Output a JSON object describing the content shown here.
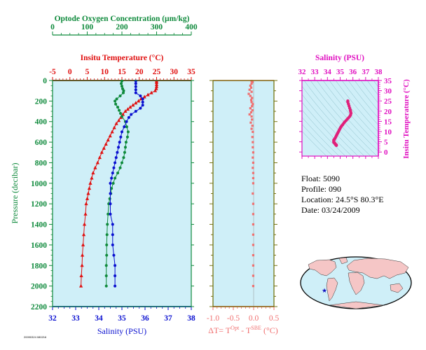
{
  "colors": {
    "green": "#0f8a3c",
    "red": "#e01010",
    "blue": "#0a10d0",
    "salmon": "#f07070",
    "magenta": "#e010c0",
    "panel_bg": "#cfeff8",
    "axis_dark": "#6a6a00"
  },
  "float_info": {
    "float": "Float:  5090",
    "profile": "Profile:  090",
    "location": "Location:  24.5°S  80.3°E",
    "date": "Date:  03/24/2009"
  },
  "footer_code": "20090324 080216",
  "chart_data": [
    {
      "type": "line",
      "panel": "profile",
      "title_oxygen": "Optode Oxygen Concentration (µm/kg)",
      "title_temperature": "Insitu Temperature (°C)",
      "xlabel_salinity": "Salinity (PSU)",
      "ylabel": "Pressure (decibar)",
      "ylim": [
        0,
        2200
      ],
      "y_ticks": [
        "0",
        "200",
        "400",
        "600",
        "800",
        "1000",
        "1200",
        "1400",
        "1600",
        "1800",
        "2000",
        "2200"
      ],
      "oxygen_axis": {
        "range": [
          0,
          400
        ],
        "ticks": [
          "0",
          "100",
          "200",
          "300",
          "400"
        ]
      },
      "temperature_axis": {
        "range": [
          -5,
          35
        ],
        "ticks": [
          "-5",
          "0",
          "5",
          "10",
          "15",
          "20",
          "25",
          "30",
          "35"
        ]
      },
      "salinity_axis": {
        "range": [
          32,
          38
        ],
        "ticks": [
          "32",
          "33",
          "34",
          "35",
          "36",
          "37",
          "38"
        ]
      },
      "series": [
        {
          "variable": "temperature",
          "marker": "triangle",
          "color": "#e01010",
          "points": [
            [
              25.0,
              5
            ],
            [
              25.0,
              20
            ],
            [
              25.0,
              40
            ],
            [
              25.0,
              60
            ],
            [
              24.9,
              80
            ],
            [
              24.6,
              100
            ],
            [
              23.5,
              120
            ],
            [
              22.5,
              140
            ],
            [
              21.5,
              160
            ],
            [
              20.5,
              180
            ],
            [
              19.8,
              200
            ],
            [
              19.0,
              220
            ],
            [
              18.2,
              240
            ],
            [
              17.4,
              260
            ],
            [
              16.7,
              280
            ],
            [
              16.0,
              300
            ],
            [
              15.3,
              330
            ],
            [
              14.7,
              360
            ],
            [
              14.1,
              390
            ],
            [
              13.4,
              420
            ],
            [
              12.8,
              460
            ],
            [
              12.2,
              500
            ],
            [
              11.6,
              540
            ],
            [
              11.0,
              580
            ],
            [
              10.4,
              620
            ],
            [
              9.8,
              660
            ],
            [
              9.2,
              700
            ],
            [
              8.6,
              750
            ],
            [
              8.0,
              800
            ],
            [
              7.3,
              850
            ],
            [
              6.7,
              900
            ],
            [
              6.3,
              950
            ],
            [
              5.9,
              1000
            ],
            [
              5.6,
              1050
            ],
            [
              5.3,
              1100
            ],
            [
              5.0,
              1150
            ],
            [
              4.7,
              1200
            ],
            [
              4.5,
              1300
            ],
            [
              4.2,
              1400
            ],
            [
              4.0,
              1500
            ],
            [
              3.8,
              1600
            ],
            [
              3.6,
              1700
            ],
            [
              3.5,
              1800
            ],
            [
              3.3,
              1900
            ],
            [
              3.2,
              2000
            ]
          ]
        },
        {
          "variable": "oxygen",
          "marker": "circle",
          "color": "#0f8a3c",
          "points": [
            [
              200,
              5
            ],
            [
              198,
              30
            ],
            [
              200,
              55
            ],
            [
              202,
              80
            ],
            [
              205,
              100
            ],
            [
              204,
              120
            ],
            [
              195,
              150
            ],
            [
              185,
              180
            ],
            [
              180,
              200
            ],
            [
              182,
              230
            ],
            [
              188,
              260
            ],
            [
              192,
              290
            ],
            [
              196,
              320
            ],
            [
              200,
              350
            ],
            [
              210,
              400
            ],
            [
              214,
              450
            ],
            [
              218,
              500
            ],
            [
              216,
              550
            ],
            [
              212,
              600
            ],
            [
              210,
              650
            ],
            [
              208,
              700
            ],
            [
              205,
              750
            ],
            [
              200,
              800
            ],
            [
              195,
              850
            ],
            [
              188,
              900
            ],
            [
              180,
              950
            ],
            [
              175,
              1000
            ],
            [
              170,
              1050
            ],
            [
              168,
              1100
            ],
            [
              165,
              1150
            ],
            [
              162,
              1200
            ],
            [
              160,
              1300
            ],
            [
              158,
              1400
            ],
            [
              157,
              1500
            ],
            [
              156,
              1600
            ],
            [
              156,
              1700
            ],
            [
              155,
              1800
            ],
            [
              155,
              1900
            ],
            [
              155,
              2000
            ]
          ]
        },
        {
          "variable": "salinity",
          "marker": "circle",
          "color": "#0a10d0",
          "points": [
            [
              35.6,
              5
            ],
            [
              35.6,
              30
            ],
            [
              35.6,
              60
            ],
            [
              35.6,
              90
            ],
            [
              35.6,
              120
            ],
            [
              35.8,
              150
            ],
            [
              35.9,
              180
            ],
            [
              35.9,
              210
            ],
            [
              35.9,
              240
            ],
            [
              35.8,
              270
            ],
            [
              35.6,
              300
            ],
            [
              35.4,
              330
            ],
            [
              35.3,
              360
            ],
            [
              35.2,
              400
            ],
            [
              35.1,
              450
            ],
            [
              35.0,
              500
            ],
            [
              34.95,
              550
            ],
            [
              34.9,
              600
            ],
            [
              34.85,
              650
            ],
            [
              34.8,
              700
            ],
            [
              34.75,
              750
            ],
            [
              34.7,
              800
            ],
            [
              34.65,
              850
            ],
            [
              34.6,
              900
            ],
            [
              34.55,
              950
            ],
            [
              34.5,
              1000
            ],
            [
              34.5,
              1100
            ],
            [
              34.5,
              1200
            ],
            [
              34.5,
              1300
            ],
            [
              34.6,
              1400
            ],
            [
              34.6,
              1500
            ],
            [
              34.6,
              1600
            ],
            [
              34.65,
              1700
            ],
            [
              34.7,
              1800
            ],
            [
              34.7,
              1900
            ],
            [
              34.7,
              2000
            ]
          ]
        }
      ]
    },
    {
      "type": "scatter",
      "panel": "temperature-difference",
      "xlabel": "ΔT= T",
      "xlabel_sup1": "Opt",
      "xlabel_mid": " - T",
      "xlabel_sup2": "SBE",
      "xlabel_end": " (°C)",
      "xlim": [
        -1.0,
        0.5
      ],
      "x_ticks": [
        "-1.0",
        "-0.5",
        "0.0",
        "0.5"
      ],
      "ylim": [
        0,
        2200
      ],
      "color": "#f07070",
      "points": [
        [
          -0.05,
          5
        ],
        [
          -0.03,
          15
        ],
        [
          -0.05,
          30
        ],
        [
          -0.08,
          50
        ],
        [
          -0.06,
          70
        ],
        [
          -0.1,
          90
        ],
        [
          -0.05,
          110
        ],
        [
          -0.12,
          130
        ],
        [
          -0.08,
          150
        ],
        [
          -0.04,
          170
        ],
        [
          -0.06,
          190
        ],
        [
          -0.05,
          210
        ],
        [
          -0.02,
          230
        ],
        [
          -0.04,
          250
        ],
        [
          -0.08,
          270
        ],
        [
          -0.03,
          290
        ],
        [
          -0.06,
          310
        ],
        [
          -0.1,
          330
        ],
        [
          -0.05,
          350
        ],
        [
          -0.04,
          380
        ],
        [
          -0.07,
          410
        ],
        [
          -0.03,
          440
        ],
        [
          -0.05,
          470
        ],
        [
          -0.02,
          500
        ],
        [
          -0.03,
          550
        ],
        [
          -0.02,
          600
        ],
        [
          -0.02,
          650
        ],
        [
          -0.01,
          700
        ],
        [
          -0.02,
          750
        ],
        [
          -0.01,
          800
        ],
        [
          -0.02,
          850
        ],
        [
          -0.01,
          900
        ],
        [
          -0.01,
          950
        ],
        [
          -0.01,
          1000
        ],
        [
          -0.02,
          1100
        ],
        [
          -0.01,
          1200
        ],
        [
          -0.01,
          1300
        ],
        [
          -0.01,
          1400
        ],
        [
          -0.01,
          1500
        ],
        [
          -0.01,
          1600
        ],
        [
          -0.01,
          1700
        ],
        [
          -0.01,
          1800
        ],
        [
          -0.01,
          1900
        ],
        [
          -0.01,
          2000
        ]
      ]
    },
    {
      "type": "scatter",
      "panel": "theta-s",
      "xlabel": "Salinity (PSU)",
      "ylabel": "Insitu Temperature (°C)",
      "xlim": [
        32,
        38
      ],
      "x_ticks": [
        "32",
        "33",
        "34",
        "35",
        "36",
        "37",
        "38"
      ],
      "ylim": [
        -2,
        35
      ],
      "y_ticks": [
        "0",
        "5",
        "10",
        "15",
        "20",
        "25",
        "30",
        "35"
      ],
      "color": "#e0207a",
      "points": [
        [
          35.6,
          25.0
        ],
        [
          35.6,
          24.5
        ],
        [
          35.65,
          23.5
        ],
        [
          35.7,
          22.5
        ],
        [
          35.75,
          21.5
        ],
        [
          35.8,
          20.5
        ],
        [
          35.82,
          19.8
        ],
        [
          35.85,
          19.0
        ],
        [
          35.82,
          18.2
        ],
        [
          35.75,
          17.4
        ],
        [
          35.65,
          16.7
        ],
        [
          35.55,
          16.0
        ],
        [
          35.45,
          15.3
        ],
        [
          35.35,
          14.7
        ],
        [
          35.28,
          14.1
        ],
        [
          35.2,
          13.4
        ],
        [
          35.12,
          12.8
        ],
        [
          35.05,
          12.2
        ],
        [
          35.0,
          11.6
        ],
        [
          34.95,
          11.0
        ],
        [
          34.9,
          10.4
        ],
        [
          34.85,
          9.8
        ],
        [
          34.8,
          9.2
        ],
        [
          34.75,
          8.6
        ],
        [
          34.7,
          8.0
        ],
        [
          34.65,
          7.3
        ],
        [
          34.6,
          6.7
        ],
        [
          34.55,
          6.3
        ],
        [
          34.5,
          5.9
        ],
        [
          34.5,
          5.6
        ],
        [
          34.5,
          5.3
        ],
        [
          34.5,
          5.0
        ],
        [
          34.5,
          4.7
        ],
        [
          34.55,
          4.5
        ],
        [
          34.6,
          4.2
        ],
        [
          34.6,
          4.0
        ],
        [
          34.62,
          3.8
        ],
        [
          34.65,
          3.6
        ],
        [
          34.7,
          3.5
        ],
        [
          34.7,
          3.3
        ],
        [
          34.7,
          3.2
        ]
      ]
    }
  ],
  "map": {
    "float_marker_color": "#1010c0",
    "float_lat": -24.5,
    "float_lon": 80.3
  }
}
